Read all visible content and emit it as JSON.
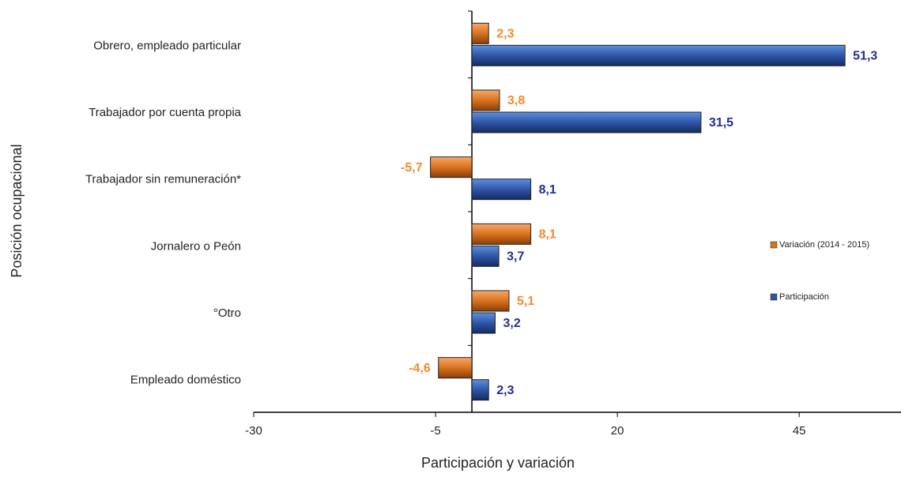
{
  "chart_data": {
    "type": "hbar",
    "x_label": "Participación y variación",
    "y_label": "Posición ocupacional",
    "categories": [
      "Obrero, empleado particular",
      "Trabajador por cuenta propia",
      "Trabajador sin remuneración*",
      "Jornalero o Peón",
      "°Otro",
      "Empleado doméstico"
    ],
    "series": [
      {
        "name": "Variación (2014 - 2015)",
        "color": "#d9731f",
        "label_color": "#f58a2e",
        "values": [
          2.3,
          3.8,
          -5.7,
          8.1,
          5.1,
          -4.6
        ],
        "value_labels": [
          "2,3",
          "3,8",
          "-5,7",
          "8,1",
          "5,1",
          "-4,6"
        ]
      },
      {
        "name": "Participación",
        "color": "#2e56a6",
        "label_color": "#232f8f",
        "values": [
          51.3,
          31.5,
          8.1,
          3.7,
          3.2,
          2.3
        ],
        "value_labels": [
          "51,3",
          "31,5",
          "8,1",
          "3,7",
          "3,2",
          "2,3"
        ]
      }
    ],
    "xlim": [
      -30,
      59
    ],
    "xticks": [
      -30,
      -5,
      20,
      45
    ]
  }
}
